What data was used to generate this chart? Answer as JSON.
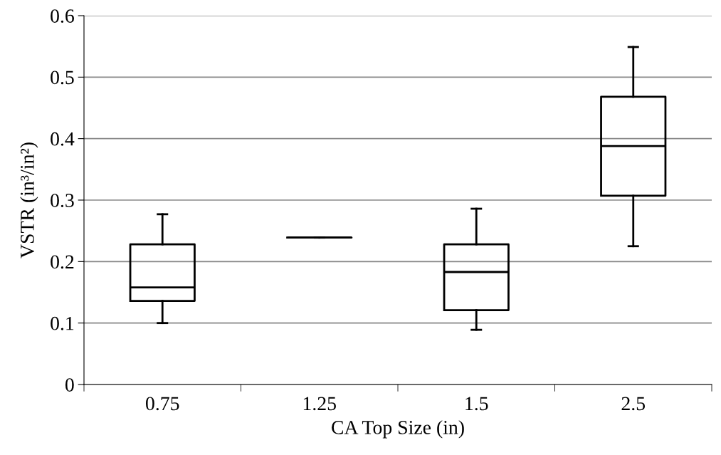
{
  "chart_data": {
    "type": "box",
    "xlabel": "CA Top Size (in)",
    "ylabel": "VSTR (in³/in²)",
    "categories": [
      "0.75",
      "1.25",
      "1.5",
      "2.5"
    ],
    "boxes": [
      {
        "low": 0.1,
        "q1": 0.136,
        "median": 0.158,
        "q3": 0.228,
        "high": 0.277
      },
      {
        "low": 0.239,
        "q1": 0.239,
        "median": 0.239,
        "q3": 0.239,
        "high": 0.239
      },
      {
        "low": 0.089,
        "q1": 0.121,
        "median": 0.183,
        "q3": 0.228,
        "high": 0.286
      },
      {
        "low": 0.225,
        "q1": 0.307,
        "median": 0.388,
        "q3": 0.468,
        "high": 0.549
      }
    ],
    "ylim": [
      0,
      0.6
    ],
    "yticks": [
      0,
      0.1,
      0.2,
      0.3,
      0.4,
      0.5,
      0.6
    ],
    "grid": "y",
    "legend": false
  }
}
